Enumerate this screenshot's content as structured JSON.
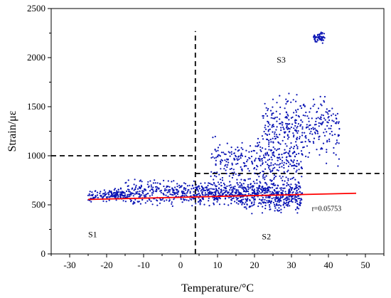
{
  "chart_data": {
    "type": "scatter",
    "xlabel": "Temperature/°C",
    "ylabel": "Strain/με",
    "xlim": [
      -35,
      55
    ],
    "ylim": [
      0,
      2500
    ],
    "xticks": [
      -30,
      -20,
      -10,
      0,
      10,
      20,
      30,
      40,
      50
    ],
    "yticks": [
      0,
      500,
      1000,
      1500,
      2000,
      2500
    ],
    "grid": false,
    "colors": {
      "points": "#0a14b4",
      "fit": "#ff0000",
      "dashed": "#000000"
    },
    "regions": [
      {
        "label": "S1",
        "x": -25,
        "y": 170
      },
      {
        "label": "S2",
        "x": 22,
        "y": 150
      },
      {
        "label": "S3",
        "x": 26,
        "y": 1950
      }
    ],
    "fit_line": {
      "x": [
        -25,
        47.5
      ],
      "y": [
        555,
        618
      ]
    },
    "fit_annotation": {
      "text": "r=0.05753",
      "x": 35.5,
      "y": 440
    },
    "dashed_lines": [
      {
        "x": [
          4,
          4
        ],
        "y": [
          0,
          2270
        ]
      },
      {
        "x": [
          -35,
          4
        ],
        "y": [
          1000,
          1000
        ]
      },
      {
        "x": [
          4,
          55
        ],
        "y": [
          820,
          820
        ]
      }
    ],
    "point_clusters": [
      {
        "x_range": [
          -25,
          -15
        ],
        "y_center": 600,
        "y_spread": 80,
        "count": 140
      },
      {
        "x_range": [
          -15,
          4
        ],
        "y_center": 620,
        "y_spread": 160,
        "count": 280
      },
      {
        "x_range": [
          4,
          16
        ],
        "y_center": 620,
        "y_spread": 170,
        "count": 260
      },
      {
        "x_range": [
          16,
          33
        ],
        "y_center": 600,
        "y_spread": 220,
        "count": 480
      },
      {
        "x_range": [
          8,
          33
        ],
        "y_center": 950,
        "y_spread": 300,
        "count": 320
      },
      {
        "x_range": [
          22,
          43
        ],
        "y_center": 1300,
        "y_spread": 450,
        "count": 340
      },
      {
        "x_range": [
          36,
          39
        ],
        "y_center": 2200,
        "y_spread": 80,
        "count": 60
      }
    ]
  }
}
